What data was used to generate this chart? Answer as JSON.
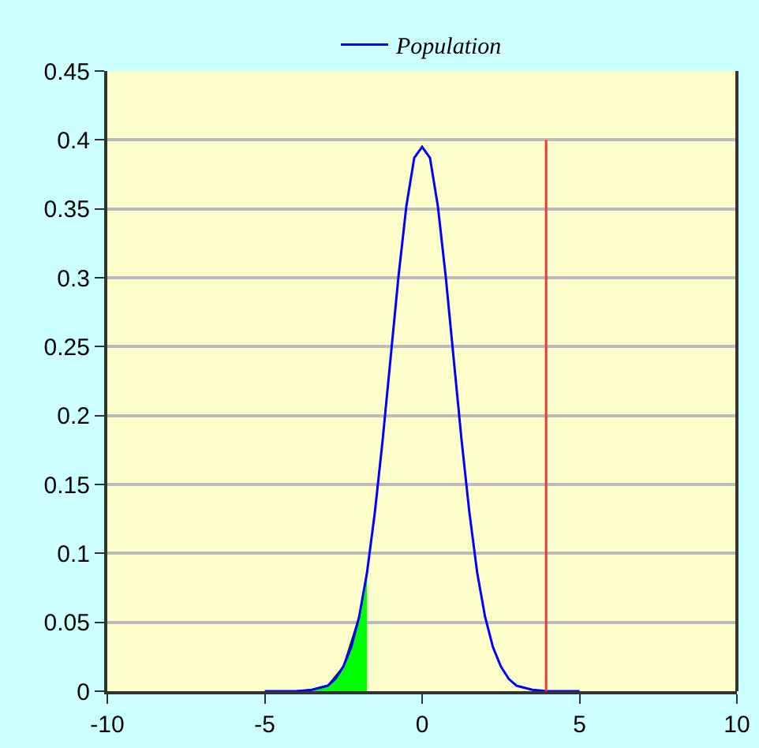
{
  "chart_data": {
    "type": "line",
    "legend": "top",
    "grid": "y",
    "marker": "none",
    "line_style": "solid",
    "xlim": [
      -10,
      10
    ],
    "xticks": [
      -10,
      -5,
      0,
      5,
      10
    ],
    "ylim": [
      0,
      0.45
    ],
    "yticks": [
      0,
      0.05,
      0.1,
      0.15,
      0.2,
      0.25,
      0.3,
      0.35,
      0.4,
      0.45
    ],
    "series": [
      {
        "type": "area",
        "color": "#00ff00",
        "x": [
          -4,
          -3.5,
          -3,
          -2.5,
          -2,
          -1.75
        ],
        "values": [
          0,
          0.001,
          0.004,
          0.018,
          0.054,
          0.086
        ]
      },
      {
        "name": "Population",
        "color": "#0000ff",
        "x": [
          -5,
          -4.5,
          -4,
          -3.5,
          -3,
          -2.75,
          -2.5,
          -2.25,
          -2,
          -1.75,
          -1.5,
          -1.25,
          -1,
          -0.75,
          -0.5,
          -0.25,
          0,
          0.25,
          0.5,
          0.75,
          1,
          1.25,
          1.5,
          1.75,
          2,
          2.25,
          2.5,
          2.75,
          3,
          3.5,
          4,
          4.5,
          5
        ],
        "values": [
          0,
          0,
          0,
          0.001,
          0.004,
          0.009,
          0.018,
          0.032,
          0.054,
          0.086,
          0.13,
          0.183,
          0.242,
          0.301,
          0.352,
          0.387,
          0.395,
          0.387,
          0.352,
          0.301,
          0.242,
          0.183,
          0.13,
          0.086,
          0.054,
          0.032,
          0.018,
          0.009,
          0.004,
          0.001,
          0,
          0,
          0
        ]
      },
      {
        "color": "#ff3333",
        "x": [
          3.94,
          3.94
        ],
        "values": [
          0,
          0.4
        ]
      }
    ]
  }
}
